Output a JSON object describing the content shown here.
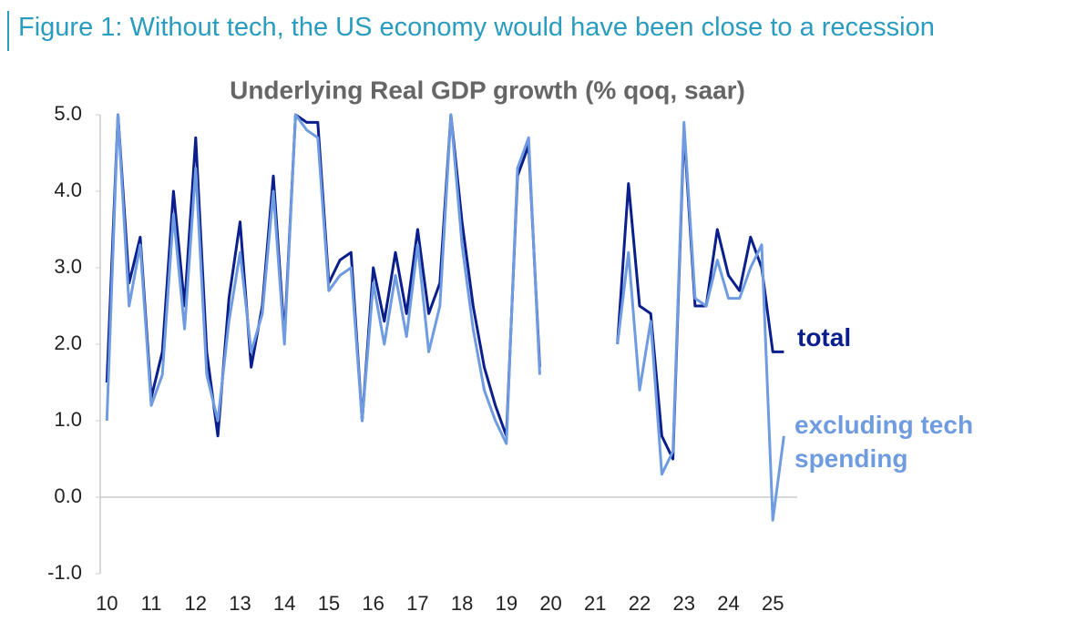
{
  "figure_title": "Figure 1: Without tech, the US economy would have been close to a recession",
  "chart_data": {
    "type": "line",
    "title": "Underlying Real GDP growth (% qoq, saar)",
    "x": [
      10,
      10.25,
      10.5,
      10.75,
      11,
      11.25,
      11.5,
      11.75,
      12,
      12.25,
      12.5,
      12.75,
      13,
      13.25,
      13.5,
      13.75,
      14,
      14.25,
      14.5,
      14.75,
      15,
      15.25,
      15.5,
      15.75,
      16,
      16.25,
      16.5,
      16.75,
      17,
      17.25,
      17.5,
      17.75,
      18,
      18.25,
      18.5,
      18.75,
      19,
      19.25,
      19.5,
      19.75,
      20,
      20.25,
      20.5,
      20.75,
      21,
      21.25,
      21.5,
      21.75,
      22,
      22.25,
      22.5,
      22.75,
      23,
      23.25,
      23.5,
      23.75,
      24,
      24.25,
      24.5,
      24.75,
      25,
      25.25
    ],
    "series": [
      {
        "name": "total",
        "color": "#0b1f8c",
        "values": [
          1.5,
          5.0,
          2.8,
          3.4,
          1.3,
          1.9,
          4.0,
          2.5,
          4.7,
          1.9,
          0.8,
          2.6,
          3.6,
          1.7,
          2.5,
          4.2,
          2.1,
          5.0,
          4.9,
          4.9,
          2.8,
          3.1,
          3.2,
          1.0,
          3.0,
          2.3,
          3.2,
          2.4,
          3.5,
          2.4,
          2.8,
          5.0,
          3.6,
          2.5,
          1.7,
          1.2,
          0.8,
          4.2,
          4.6,
          1.7,
          null,
          null,
          null,
          null,
          null,
          null,
          2.0,
          4.1,
          2.5,
          2.4,
          0.8,
          0.5,
          4.8,
          2.5,
          2.5,
          3.5,
          2.9,
          2.7,
          3.4,
          3.0,
          1.9,
          1.9
        ]
      },
      {
        "name": "excluding tech spending",
        "color": "#6f9be0",
        "values": [
          1.0,
          5.0,
          2.5,
          3.3,
          1.2,
          1.6,
          3.7,
          2.2,
          4.3,
          1.6,
          1.0,
          2.3,
          3.2,
          1.9,
          2.4,
          4.0,
          2.0,
          5.0,
          4.8,
          4.7,
          2.7,
          2.9,
          3.0,
          1.0,
          2.8,
          2.0,
          2.9,
          2.1,
          3.3,
          1.9,
          2.5,
          5.0,
          3.3,
          2.2,
          1.4,
          1.0,
          0.7,
          4.3,
          4.7,
          1.6,
          null,
          null,
          null,
          null,
          null,
          null,
          2.0,
          3.2,
          1.4,
          2.3,
          0.3,
          0.6,
          4.9,
          2.6,
          2.5,
          3.1,
          2.6,
          2.6,
          3.0,
          3.3,
          -0.3,
          0.8
        ]
      }
    ],
    "xlim": [
      9.85,
      25.55
    ],
    "ylim": [
      -1,
      5
    ],
    "xticks": [
      10,
      11,
      12,
      13,
      14,
      15,
      16,
      17,
      18,
      19,
      20,
      21,
      22,
      23,
      24,
      25
    ],
    "yticks": [
      {
        "value": 5,
        "label": "5.0"
      },
      {
        "value": 4,
        "label": "4.0"
      },
      {
        "value": 3,
        "label": "3.0"
      },
      {
        "value": 2,
        "label": "2.0"
      },
      {
        "value": 1,
        "label": "1.0"
      },
      {
        "value": 0,
        "label": "0.0"
      },
      {
        "value": -1,
        "label": "-1.0"
      }
    ]
  }
}
